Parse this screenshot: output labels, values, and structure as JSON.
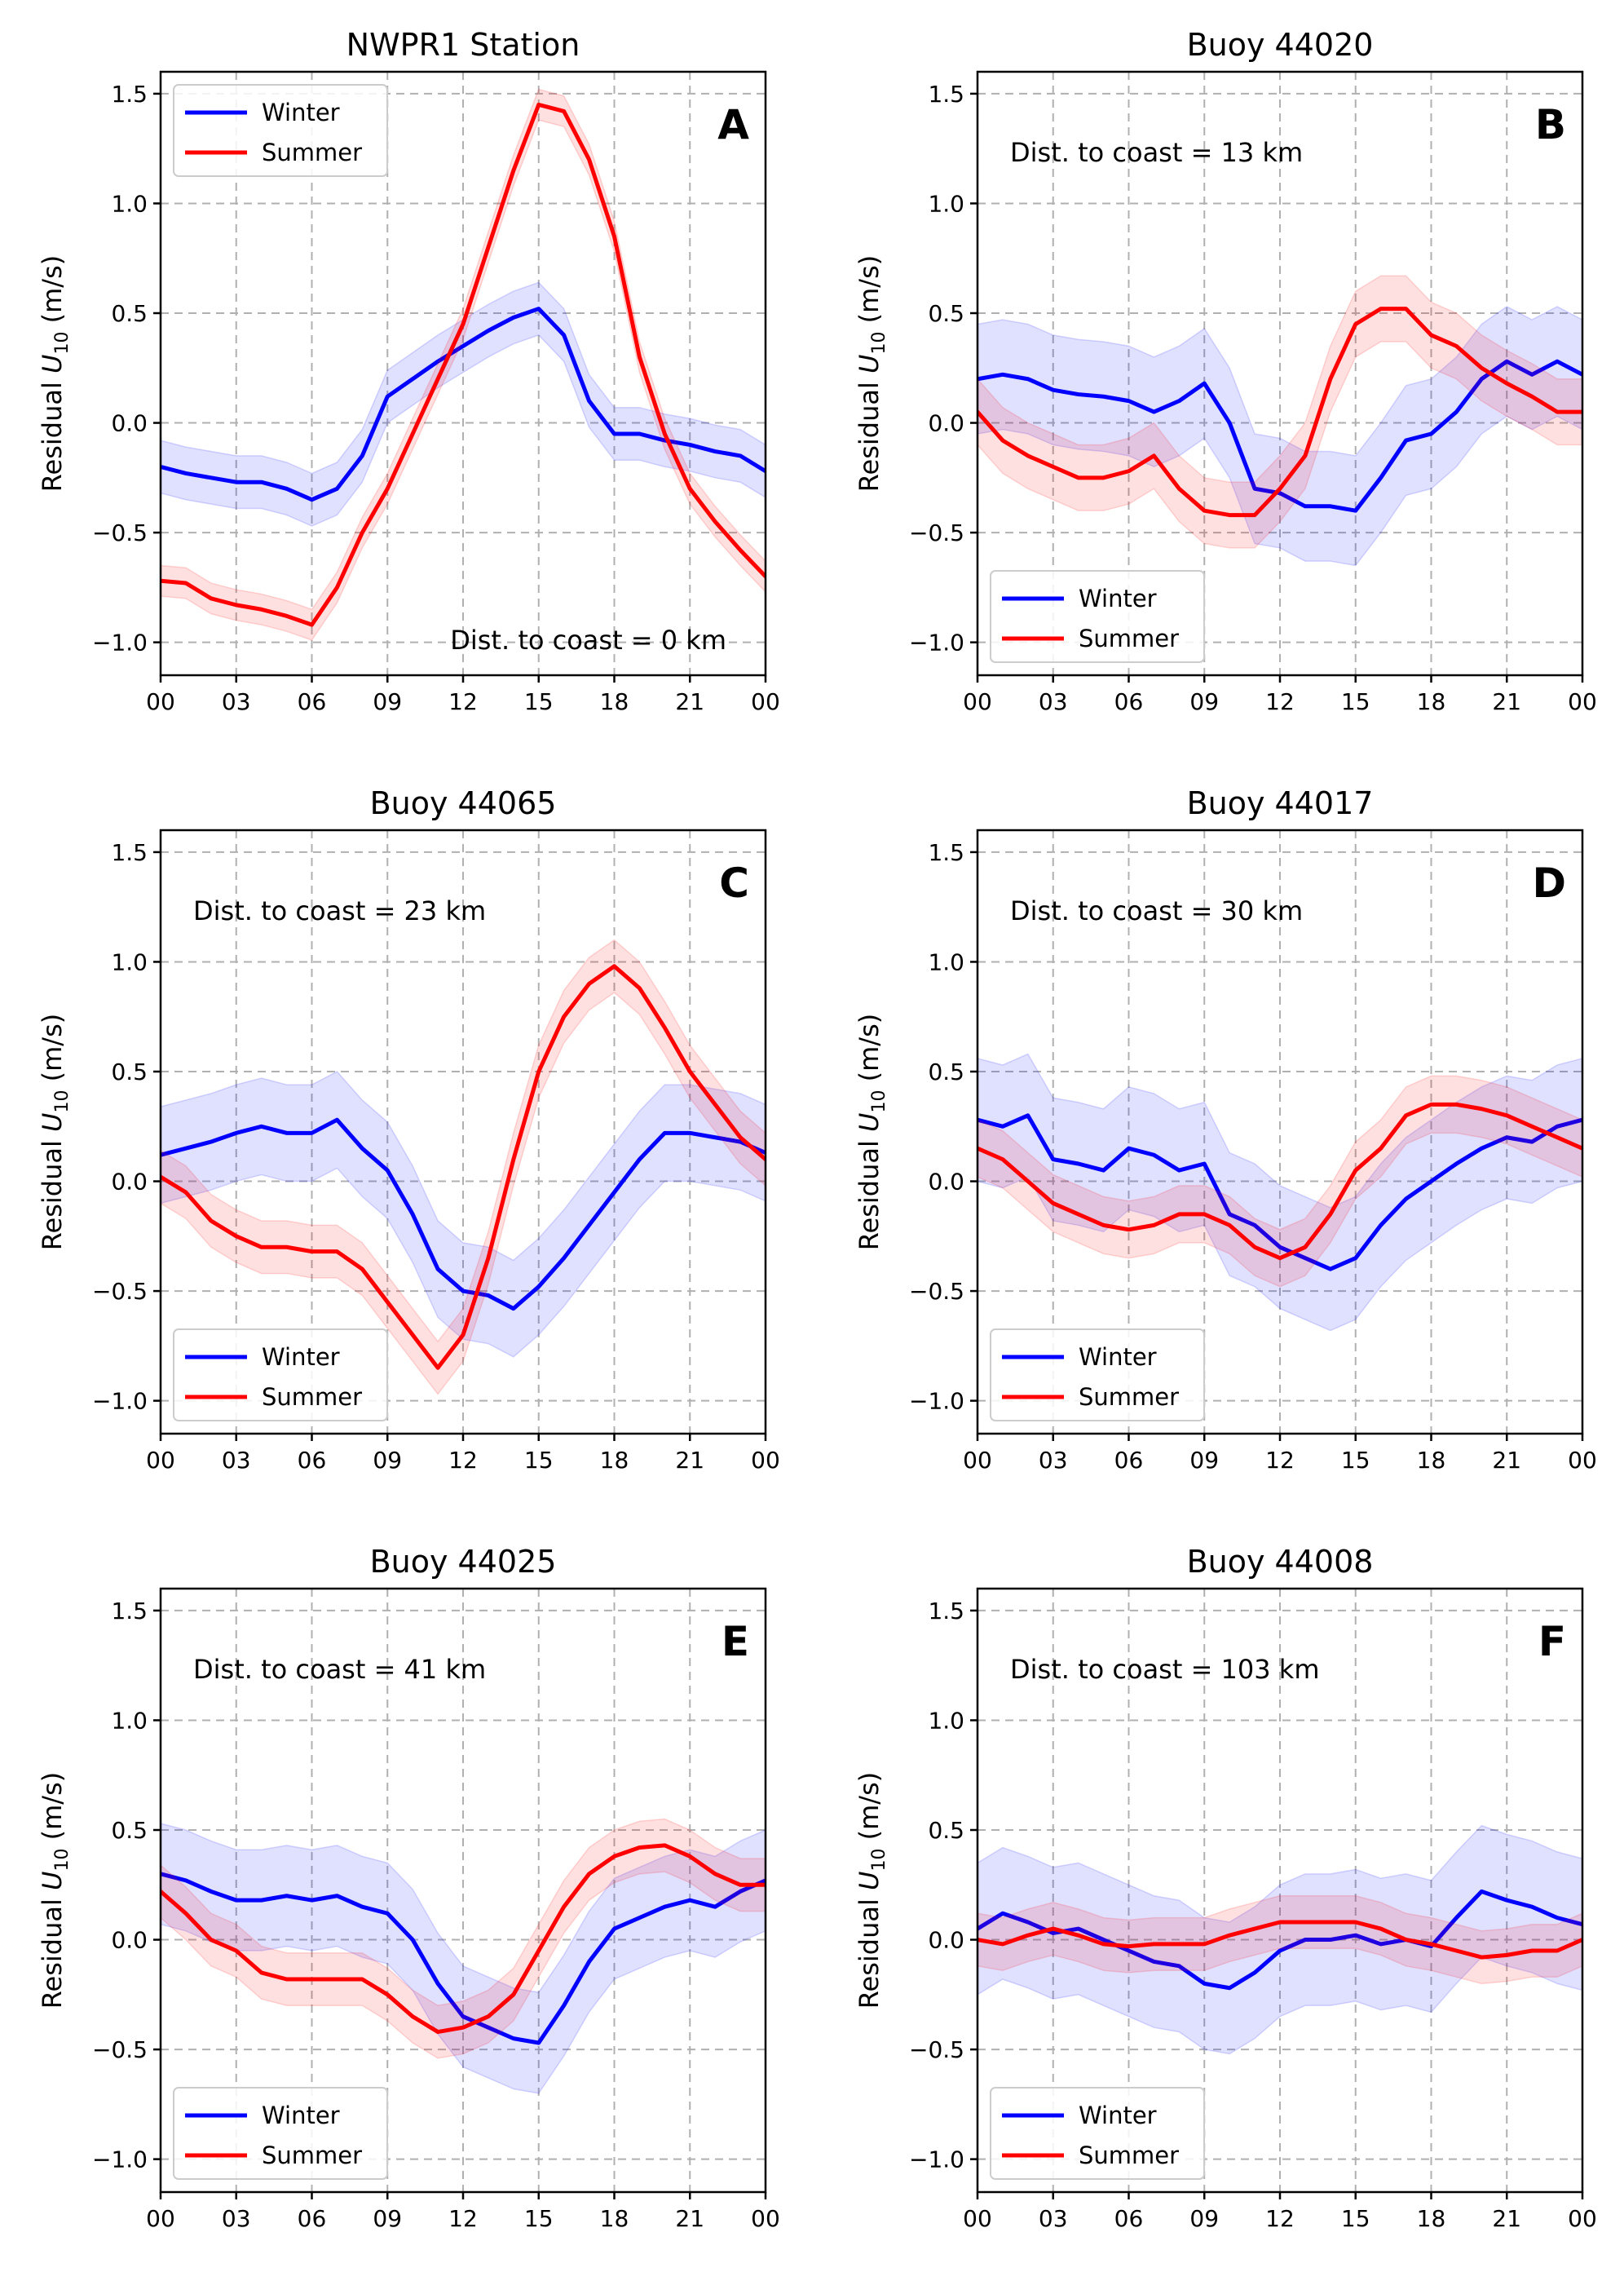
{
  "chart_data": [
    {
      "type": "line",
      "panel_letter": "A",
      "title": "NWPR1 Station",
      "ylabel_main": "Residual ",
      "ylabel_var": "U",
      "ylabel_sub": "10",
      "ylabel_unit": " (m/s)",
      "annotation": "Dist. to coast = 0 km",
      "annotation_position": "bottom-right",
      "legend_position": "top-left",
      "xlim": [
        0,
        24
      ],
      "ylim": [
        -1.15,
        1.6
      ],
      "xticks": [
        "00",
        "03",
        "06",
        "09",
        "12",
        "15",
        "18",
        "21",
        "00"
      ],
      "yticks": [
        "−1.0",
        "−0.5",
        "0.0",
        "0.5",
        "1.0",
        "1.5"
      ],
      "grid": true,
      "x": [
        0,
        1,
        2,
        3,
        4,
        5,
        6,
        7,
        8,
        9,
        10,
        11,
        12,
        13,
        14,
        15,
        16,
        17,
        18,
        19,
        20,
        21,
        22,
        23,
        24
      ],
      "series": [
        {
          "name": "Winter",
          "color": "#0000ff",
          "band": 0.12,
          "values": [
            -0.2,
            -0.23,
            -0.25,
            -0.27,
            -0.27,
            -0.3,
            -0.35,
            -0.3,
            -0.15,
            0.12,
            0.2,
            0.28,
            0.35,
            0.42,
            0.48,
            0.52,
            0.4,
            0.1,
            -0.05,
            -0.05,
            -0.08,
            -0.1,
            -0.13,
            -0.15,
            -0.22
          ]
        },
        {
          "name": "Summer",
          "color": "#ff0000",
          "band": 0.07,
          "values": [
            -0.72,
            -0.73,
            -0.8,
            -0.83,
            -0.85,
            -0.88,
            -0.92,
            -0.75,
            -0.5,
            -0.3,
            -0.05,
            0.2,
            0.45,
            0.8,
            1.15,
            1.45,
            1.42,
            1.2,
            0.85,
            0.3,
            -0.05,
            -0.3,
            -0.45,
            -0.58,
            -0.7
          ]
        }
      ]
    },
    {
      "type": "line",
      "panel_letter": "B",
      "title": "Buoy 44020",
      "ylabel_main": "Residual ",
      "ylabel_var": "U",
      "ylabel_sub": "10",
      "ylabel_unit": " (m/s)",
      "annotation": "Dist. to coast = 13 km",
      "annotation_position": "top-left",
      "legend_position": "bottom-left",
      "xlim": [
        0,
        24
      ],
      "ylim": [
        -1.15,
        1.6
      ],
      "xticks": [
        "00",
        "03",
        "06",
        "09",
        "12",
        "15",
        "18",
        "21",
        "00"
      ],
      "yticks": [
        "−1.0",
        "−0.5",
        "0.0",
        "0.5",
        "1.0",
        "1.5"
      ],
      "grid": true,
      "x": [
        0,
        1,
        2,
        3,
        4,
        5,
        6,
        7,
        8,
        9,
        10,
        11,
        12,
        13,
        14,
        15,
        16,
        17,
        18,
        19,
        20,
        21,
        22,
        23,
        24
      ],
      "series": [
        {
          "name": "Winter",
          "color": "#0000ff",
          "band": 0.25,
          "values": [
            0.2,
            0.22,
            0.2,
            0.15,
            0.13,
            0.12,
            0.1,
            0.05,
            0.1,
            0.18,
            0.0,
            -0.3,
            -0.32,
            -0.38,
            -0.38,
            -0.4,
            -0.25,
            -0.08,
            -0.05,
            0.05,
            0.2,
            0.28,
            0.22,
            0.28,
            0.22
          ]
        },
        {
          "name": "Summer",
          "color": "#ff0000",
          "band": 0.15,
          "values": [
            0.05,
            -0.08,
            -0.15,
            -0.2,
            -0.25,
            -0.25,
            -0.22,
            -0.15,
            -0.3,
            -0.4,
            -0.42,
            -0.42,
            -0.3,
            -0.15,
            0.2,
            0.45,
            0.52,
            0.52,
            0.4,
            0.35,
            0.25,
            0.18,
            0.12,
            0.05,
            0.05
          ]
        }
      ]
    },
    {
      "type": "line",
      "panel_letter": "C",
      "title": "Buoy 44065",
      "ylabel_main": "Residual ",
      "ylabel_var": "U",
      "ylabel_sub": "10",
      "ylabel_unit": " (m/s)",
      "annotation": "Dist. to coast = 23 km",
      "annotation_position": "top-left",
      "legend_position": "bottom-left",
      "xlim": [
        0,
        24
      ],
      "ylim": [
        -1.15,
        1.6
      ],
      "xticks": [
        "00",
        "03",
        "06",
        "09",
        "12",
        "15",
        "18",
        "21",
        "00"
      ],
      "yticks": [
        "−1.0",
        "−0.5",
        "0.0",
        "0.5",
        "1.0",
        "1.5"
      ],
      "grid": true,
      "x": [
        0,
        1,
        2,
        3,
        4,
        5,
        6,
        7,
        8,
        9,
        10,
        11,
        12,
        13,
        14,
        15,
        16,
        17,
        18,
        19,
        20,
        21,
        22,
        23,
        24
      ],
      "series": [
        {
          "name": "Winter",
          "color": "#0000ff",
          "band": 0.22,
          "values": [
            0.12,
            0.15,
            0.18,
            0.22,
            0.25,
            0.22,
            0.22,
            0.28,
            0.15,
            0.05,
            -0.15,
            -0.4,
            -0.5,
            -0.52,
            -0.58,
            -0.48,
            -0.35,
            -0.2,
            -0.05,
            0.1,
            0.22,
            0.22,
            0.2,
            0.18,
            0.13
          ]
        },
        {
          "name": "Summer",
          "color": "#ff0000",
          "band": 0.12,
          "values": [
            0.02,
            -0.05,
            -0.18,
            -0.25,
            -0.3,
            -0.3,
            -0.32,
            -0.32,
            -0.4,
            -0.55,
            -0.7,
            -0.85,
            -0.7,
            -0.35,
            0.1,
            0.5,
            0.75,
            0.9,
            0.98,
            0.88,
            0.7,
            0.5,
            0.35,
            0.2,
            0.1
          ]
        }
      ]
    },
    {
      "type": "line",
      "panel_letter": "D",
      "title": "Buoy 44017",
      "ylabel_main": "Residual ",
      "ylabel_var": "U",
      "ylabel_sub": "10",
      "ylabel_unit": " (m/s)",
      "annotation": "Dist. to coast = 30 km",
      "annotation_position": "top-left",
      "legend_position": "bottom-left",
      "xlim": [
        0,
        24
      ],
      "ylim": [
        -1.15,
        1.6
      ],
      "xticks": [
        "00",
        "03",
        "06",
        "09",
        "12",
        "15",
        "18",
        "21",
        "00"
      ],
      "yticks": [
        "−1.0",
        "−0.5",
        "0.0",
        "0.5",
        "1.0",
        "1.5"
      ],
      "grid": true,
      "x": [
        0,
        1,
        2,
        3,
        4,
        5,
        6,
        7,
        8,
        9,
        10,
        11,
        12,
        13,
        14,
        15,
        16,
        17,
        18,
        19,
        20,
        21,
        22,
        23,
        24
      ],
      "series": [
        {
          "name": "Winter",
          "color": "#0000ff",
          "band": 0.28,
          "values": [
            0.28,
            0.25,
            0.3,
            0.1,
            0.08,
            0.05,
            0.15,
            0.12,
            0.05,
            0.08,
            -0.15,
            -0.2,
            -0.3,
            -0.35,
            -0.4,
            -0.35,
            -0.2,
            -0.08,
            0.0,
            0.08,
            0.15,
            0.2,
            0.18,
            0.25,
            0.28
          ]
        },
        {
          "name": "Summer",
          "color": "#ff0000",
          "band": 0.13,
          "values": [
            0.15,
            0.1,
            0.0,
            -0.1,
            -0.15,
            -0.2,
            -0.22,
            -0.2,
            -0.15,
            -0.15,
            -0.2,
            -0.3,
            -0.35,
            -0.3,
            -0.15,
            0.05,
            0.15,
            0.3,
            0.35,
            0.35,
            0.33,
            0.3,
            0.25,
            0.2,
            0.15
          ]
        }
      ]
    },
    {
      "type": "line",
      "panel_letter": "E",
      "title": "Buoy 44025",
      "ylabel_main": "Residual ",
      "ylabel_var": "U",
      "ylabel_sub": "10",
      "ylabel_unit": " (m/s)",
      "annotation": "Dist. to coast = 41 km",
      "annotation_position": "top-left",
      "legend_position": "bottom-left",
      "xlim": [
        0,
        24
      ],
      "ylim": [
        -1.15,
        1.6
      ],
      "xticks": [
        "00",
        "03",
        "06",
        "09",
        "12",
        "15",
        "18",
        "21",
        "00"
      ],
      "yticks": [
        "−1.0",
        "−0.5",
        "0.0",
        "0.5",
        "1.0",
        "1.5"
      ],
      "grid": true,
      "x": [
        0,
        1,
        2,
        3,
        4,
        5,
        6,
        7,
        8,
        9,
        10,
        11,
        12,
        13,
        14,
        15,
        16,
        17,
        18,
        19,
        20,
        21,
        22,
        23,
        24
      ],
      "series": [
        {
          "name": "Winter",
          "color": "#0000ff",
          "band": 0.23,
          "values": [
            0.3,
            0.27,
            0.22,
            0.18,
            0.18,
            0.2,
            0.18,
            0.2,
            0.15,
            0.12,
            0.0,
            -0.2,
            -0.35,
            -0.4,
            -0.45,
            -0.47,
            -0.3,
            -0.1,
            0.05,
            0.1,
            0.15,
            0.18,
            0.15,
            0.22,
            0.27
          ]
        },
        {
          "name": "Summer",
          "color": "#ff0000",
          "band": 0.12,
          "values": [
            0.22,
            0.12,
            0.0,
            -0.05,
            -0.15,
            -0.18,
            -0.18,
            -0.18,
            -0.18,
            -0.25,
            -0.35,
            -0.42,
            -0.4,
            -0.35,
            -0.25,
            -0.05,
            0.15,
            0.3,
            0.38,
            0.42,
            0.43,
            0.38,
            0.3,
            0.25,
            0.25
          ]
        }
      ]
    },
    {
      "type": "line",
      "panel_letter": "F",
      "title": "Buoy 44008",
      "ylabel_main": "Residual ",
      "ylabel_var": "U",
      "ylabel_sub": "10",
      "ylabel_unit": " (m/s)",
      "annotation": "Dist. to coast = 103 km",
      "annotation_position": "top-left",
      "legend_position": "bottom-left",
      "xlim": [
        0,
        24
      ],
      "ylim": [
        -1.15,
        1.6
      ],
      "xticks": [
        "00",
        "03",
        "06",
        "09",
        "12",
        "15",
        "18",
        "21",
        "00"
      ],
      "yticks": [
        "−1.0",
        "−0.5",
        "0.0",
        "0.5",
        "1.0",
        "1.5"
      ],
      "grid": true,
      "x": [
        0,
        1,
        2,
        3,
        4,
        5,
        6,
        7,
        8,
        9,
        10,
        11,
        12,
        13,
        14,
        15,
        16,
        17,
        18,
        19,
        20,
        21,
        22,
        23,
        24
      ],
      "series": [
        {
          "name": "Winter",
          "color": "#0000ff",
          "band": 0.3,
          "values": [
            0.05,
            0.12,
            0.08,
            0.03,
            0.05,
            0.0,
            -0.05,
            -0.1,
            -0.12,
            -0.2,
            -0.22,
            -0.15,
            -0.05,
            0.0,
            0.0,
            0.02,
            -0.02,
            0.0,
            -0.03,
            0.1,
            0.22,
            0.18,
            0.15,
            0.1,
            0.07
          ]
        },
        {
          "name": "Summer",
          "color": "#ff0000",
          "band": 0.12,
          "values": [
            0.0,
            -0.02,
            0.02,
            0.05,
            0.02,
            -0.02,
            -0.03,
            -0.02,
            -0.02,
            -0.02,
            0.02,
            0.05,
            0.08,
            0.08,
            0.08,
            0.08,
            0.05,
            0.0,
            -0.02,
            -0.05,
            -0.08,
            -0.07,
            -0.05,
            -0.05,
            0.0
          ]
        }
      ]
    }
  ]
}
